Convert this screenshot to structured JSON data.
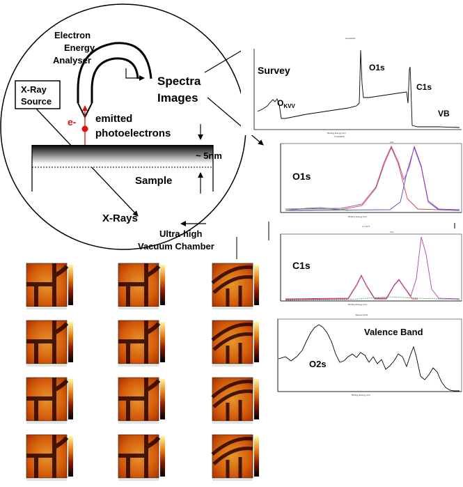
{
  "diagram": {
    "analyser_label": [
      "Electron",
      "Energy",
      "Analyser"
    ],
    "xray_source_label": [
      "X-Ray",
      "Source"
    ],
    "electron_label": "e-",
    "emitted_label": [
      "emitted",
      "photoelectrons"
    ],
    "depth_label": "~ 5nm",
    "sample_label": "Sample",
    "xrays_label": "X-Rays",
    "spectra_label": "Spectra",
    "images_label": "Images",
    "chamber_label": [
      "Ultra-high",
      "Vacuum Chamber"
    ]
  },
  "survey": {
    "label": "Survey",
    "peak_o1s": "O1s",
    "peak_c1s": "C1s",
    "peak_vb": "VB",
    "peak_okvv": "O",
    "peak_okvv_sub": "KVV"
  },
  "o1s_panel": {
    "label": "O1s"
  },
  "c1s_panel": {
    "label": "C1s"
  },
  "vb_panel": {
    "label": "Valence Band",
    "peak_o2s": "O2s"
  },
  "colors": {
    "photoelectron": "#dd1111",
    "fit_red": "#d04040",
    "fit_blue": "#4a4ad0",
    "fit_magenta": "#b040b0",
    "fit_green": "#40a060"
  },
  "image_grid": {
    "columns": 3,
    "rows": 4
  }
}
